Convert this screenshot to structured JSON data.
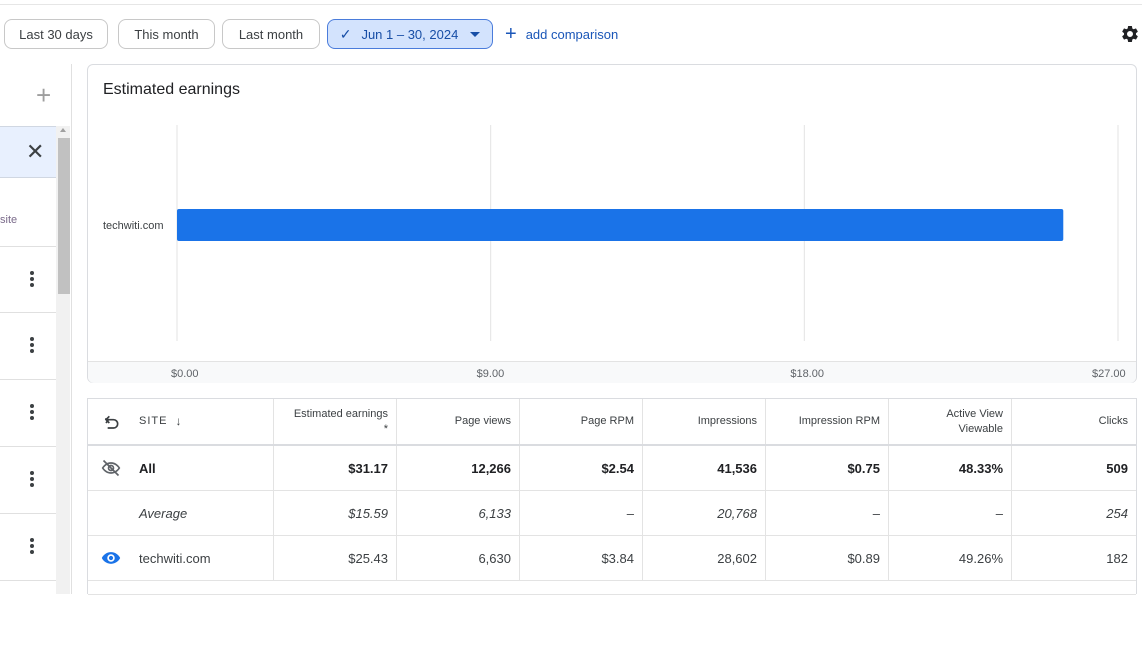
{
  "toolbar": {
    "filters": [
      "Last 30 days",
      "This month",
      "Last month"
    ],
    "selected_range": "Jun 1 – 30, 2024",
    "add_comparison": "add comparison",
    "settings_icon": "gear-icon"
  },
  "left_panel": {
    "add_icon": "plus-icon",
    "close_icon": "close-icon",
    "partial_label": "site",
    "row_menu_icon": "more-vert-icon"
  },
  "chart_card": {
    "title": "Estimated earnings",
    "chart_data": {
      "type": "bar",
      "orientation": "horizontal",
      "categories": [
        "techwiti.com"
      ],
      "values": [
        25.43
      ],
      "xlim": [
        0,
        27
      ],
      "x_ticks": [
        "$0.00",
        "$9.00",
        "$18.00",
        "$27.00"
      ],
      "x_tick_values": [
        0,
        9,
        18,
        27
      ],
      "grid": true,
      "bar_color": "#1a73e8"
    }
  },
  "table": {
    "headers": {
      "undo_icon": "undo-icon",
      "site": "SITE",
      "sort_icon": "arrow-down-icon",
      "estimated_earnings": "Estimated earnings",
      "estimated_earnings_note": "*",
      "page_views": "Page views",
      "page_rpm": "Page RPM",
      "impressions": "Impressions",
      "impression_rpm": "Impression RPM",
      "active_view_1": "Active View",
      "active_view_2": "Viewable",
      "clicks": "Clicks"
    },
    "rows": [
      {
        "icon": "visibility-off-icon",
        "site": "All",
        "estimated_earnings": "$31.17",
        "page_views": "12,266",
        "page_rpm": "$2.54",
        "impressions": "41,536",
        "impression_rpm": "$0.75",
        "active_view": "48.33%",
        "clicks": "509"
      },
      {
        "icon": "",
        "site": "Average",
        "estimated_earnings": "$15.59",
        "page_views": "6,133",
        "page_rpm": "–",
        "impressions": "20,768",
        "impression_rpm": "–",
        "active_view": "–",
        "clicks": "254"
      },
      {
        "icon": "visibility-icon",
        "site": "techwiti.com",
        "estimated_earnings": "$25.43",
        "page_views": "6,630",
        "page_rpm": "$3.84",
        "impressions": "28,602",
        "impression_rpm": "$0.89",
        "active_view": "49.26%",
        "clicks": "182"
      }
    ]
  },
  "colors": {
    "accent": "#1a73e8",
    "selected_chip_bg": "#d3e3fd",
    "link": "#1a56b8"
  }
}
